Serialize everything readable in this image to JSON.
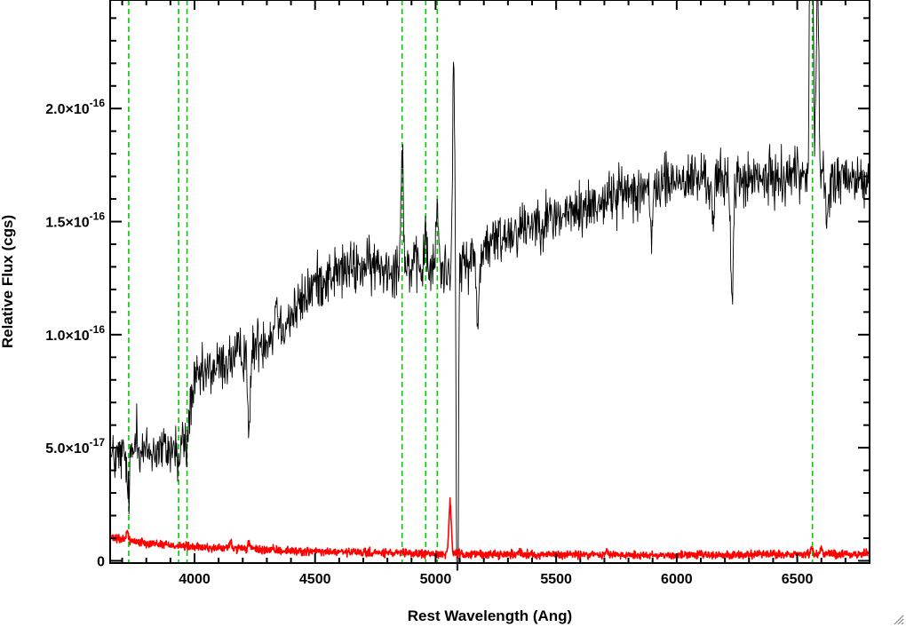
{
  "chart_data": {
    "type": "line",
    "title": "",
    "xlabel": "Rest Wavelength (Ang)",
    "ylabel": "Relative Flux (cgs)",
    "xlim": [
      3650,
      6800
    ],
    "ylim": [
      -1e-18,
      2.48e-16
    ],
    "x_ticks": [
      {
        "value": 4000,
        "label": "4000"
      },
      {
        "value": 4500,
        "label": "4500"
      },
      {
        "value": 5000,
        "label": "5000"
      },
      {
        "value": 5500,
        "label": "5500"
      },
      {
        "value": 6000,
        "label": "6000"
      },
      {
        "value": 6500,
        "label": "6500"
      }
    ],
    "y_ticks": [
      {
        "value": 0,
        "mantissa": "0",
        "exponent": ""
      },
      {
        "value": 5e-17,
        "mantissa": "5.0×10",
        "exponent": "-17"
      },
      {
        "value": 1e-16,
        "mantissa": "1.0×10",
        "exponent": "-16"
      },
      {
        "value": 1.5e-16,
        "mantissa": "1.5×10",
        "exponent": "-16"
      },
      {
        "value": 2e-16,
        "mantissa": "2.0×10",
        "exponent": "-16"
      }
    ],
    "series": [
      {
        "color": "#000000",
        "style": "spectrum",
        "anchors": [
          [
            3650,
            4.5e-17
          ],
          [
            3700,
            4.6e-17
          ],
          [
            3750,
            4.8e-17
          ],
          [
            3800,
            4.8e-17
          ],
          [
            3850,
            4.9e-17
          ],
          [
            3900,
            4.9e-17
          ],
          [
            3950,
            5.2e-17
          ],
          [
            3980,
            6.8e-17
          ],
          [
            4000,
            7.8e-17
          ],
          [
            4050,
            8.3e-17
          ],
          [
            4100,
            8.6e-17
          ],
          [
            4150,
            8.9e-17
          ],
          [
            4200,
            9.2e-17
          ],
          [
            4250,
            9.5e-17
          ],
          [
            4300,
            9.9e-17
          ],
          [
            4350,
            1.03e-16
          ],
          [
            4400,
            1.08e-16
          ],
          [
            4450,
            1.15e-16
          ],
          [
            4500,
            1.23e-16
          ],
          [
            4600,
            1.28e-16
          ],
          [
            4700,
            1.3e-16
          ],
          [
            4800,
            1.3e-16
          ],
          [
            4900,
            1.3e-16
          ],
          [
            5000,
            1.28e-16
          ],
          [
            5100,
            1.3e-16
          ],
          [
            5200,
            1.38e-16
          ],
          [
            5300,
            1.45e-16
          ],
          [
            5400,
            1.5e-16
          ],
          [
            5500,
            1.52e-16
          ],
          [
            5600,
            1.55e-16
          ],
          [
            5700,
            1.6e-16
          ],
          [
            5800,
            1.64e-16
          ],
          [
            5900,
            1.66e-16
          ],
          [
            6000,
            1.68e-16
          ],
          [
            6100,
            1.69e-16
          ],
          [
            6200,
            1.68e-16
          ],
          [
            6300,
            1.68e-16
          ],
          [
            6400,
            1.69e-16
          ],
          [
            6500,
            1.72e-16
          ],
          [
            6600,
            1.7e-16
          ],
          [
            6700,
            1.68e-16
          ],
          [
            6800,
            1.68e-16
          ]
        ],
        "noise": 6e-18,
        "features": [
          [
            3725,
            -2e-17
          ],
          [
            3760,
            1.5e-17
          ],
          [
            3934,
            -1e-17
          ],
          [
            3968,
            -1.5e-17
          ],
          [
            4227,
            -4e-17
          ],
          [
            4340,
            1.5e-17
          ],
          [
            4861,
            5.5e-17
          ],
          [
            4959,
            1.5e-17
          ],
          [
            5007,
            3e-17
          ],
          [
            5075,
            8.5e-17
          ],
          [
            5090,
            -2.4e-16
          ],
          [
            5175,
            -3.5e-17
          ],
          [
            5895,
            -3e-17
          ],
          [
            6150,
            -2e-17
          ],
          [
            6230,
            -5.5e-17
          ],
          [
            6555,
            2e-16
          ],
          [
            6563,
            1.6e-16
          ],
          [
            6584,
            9e-17
          ],
          [
            6625,
            -2.5e-17
          ]
        ]
      },
      {
        "color": "#ff0000",
        "style": "error",
        "anchors": [
          [
            3650,
            1e-17
          ],
          [
            3800,
            8e-18
          ],
          [
            4000,
            6e-18
          ],
          [
            4500,
            4e-18
          ],
          [
            5000,
            3e-18
          ],
          [
            6000,
            2.5e-18
          ],
          [
            6800,
            3e-18
          ]
        ],
        "noise": 9e-19,
        "features": [
          [
            3720,
            4e-18
          ],
          [
            4150,
            3e-18
          ],
          [
            4227,
            3e-18
          ],
          [
            5060,
            2.3e-17
          ],
          [
            5350,
            2e-18
          ],
          [
            5710,
            2e-18
          ],
          [
            6560,
            3e-18
          ],
          [
            6600,
            2.5e-18
          ]
        ]
      }
    ],
    "vertical_markers": {
      "color": "#00cc00",
      "style": "dashed",
      "x": [
        3727,
        3934,
        3969,
        4861,
        4959,
        5007,
        6563
      ]
    },
    "grid": false
  }
}
